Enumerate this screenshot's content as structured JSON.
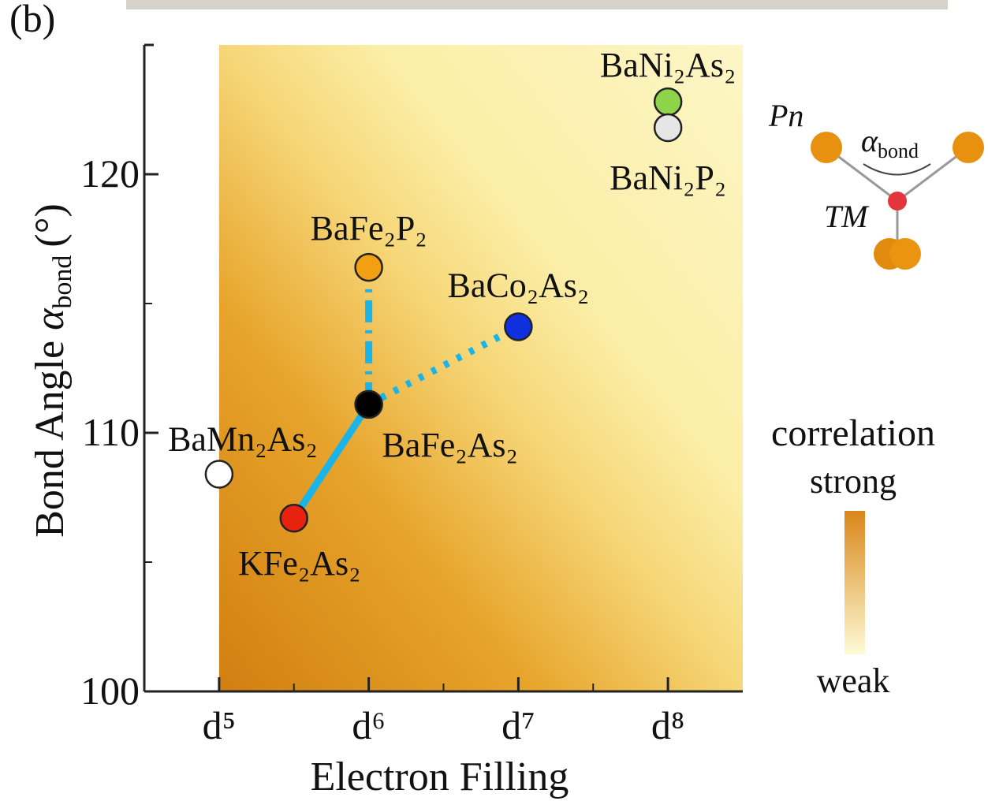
{
  "figure_label": "(b)",
  "chart_data": {
    "type": "scatter",
    "xlabel": "Electron Filling",
    "ylabel": {
      "text": "Bond Angle ",
      "symbol": "α",
      "sub": "bond",
      "unit": "(°)"
    },
    "xlim": [
      4.5,
      8.5
    ],
    "xticks": [
      {
        "value": 5,
        "label": "d⁵"
      },
      {
        "value": 6,
        "label": "d⁶"
      },
      {
        "value": 7,
        "label": "d⁷"
      },
      {
        "value": 8,
        "label": "d⁸"
      }
    ],
    "xminor": [
      5.5,
      6.5,
      7.5
    ],
    "ylim": [
      100,
      125
    ],
    "yticks": [
      100,
      110,
      120
    ],
    "yminor": [
      105,
      115
    ],
    "points": [
      {
        "name": "BaMn₂As₂",
        "x": 5,
        "y": 108.4,
        "color": "#ffffff"
      },
      {
        "name": "KFe₂As₂",
        "x": 5.5,
        "y": 106.7,
        "color": "#e8220f"
      },
      {
        "name": "BaFe₂As₂",
        "x": 6,
        "y": 111.1,
        "color": "#000000"
      },
      {
        "name": "BaFe₂P₂",
        "x": 6,
        "y": 116.4,
        "color": "#f0a010"
      },
      {
        "name": "BaCo₂As₂",
        "x": 7,
        "y": 114.1,
        "color": "#1030e0"
      },
      {
        "name": "BaNi₂As₂",
        "x": 8,
        "y": 122.8,
        "color": "#8ed44a"
      },
      {
        "name": "BaNi₂P₂",
        "x": 8,
        "y": 121.8,
        "color": "#e6e6e6"
      }
    ],
    "links": [
      {
        "from": 2,
        "to": 1,
        "style": "solid"
      },
      {
        "from": 2,
        "to": 3,
        "style": "dashdot"
      },
      {
        "from": 2,
        "to": 4,
        "style": "dotted"
      }
    ],
    "colorbar": {
      "title": "correlation",
      "top": "strong",
      "bottom": "weak",
      "colors": [
        "#d9861a",
        "#fffbd6"
      ]
    }
  },
  "inset": {
    "pn": "Pn",
    "angle": "α",
    "angle_sub": "bond",
    "tm": "TM"
  }
}
